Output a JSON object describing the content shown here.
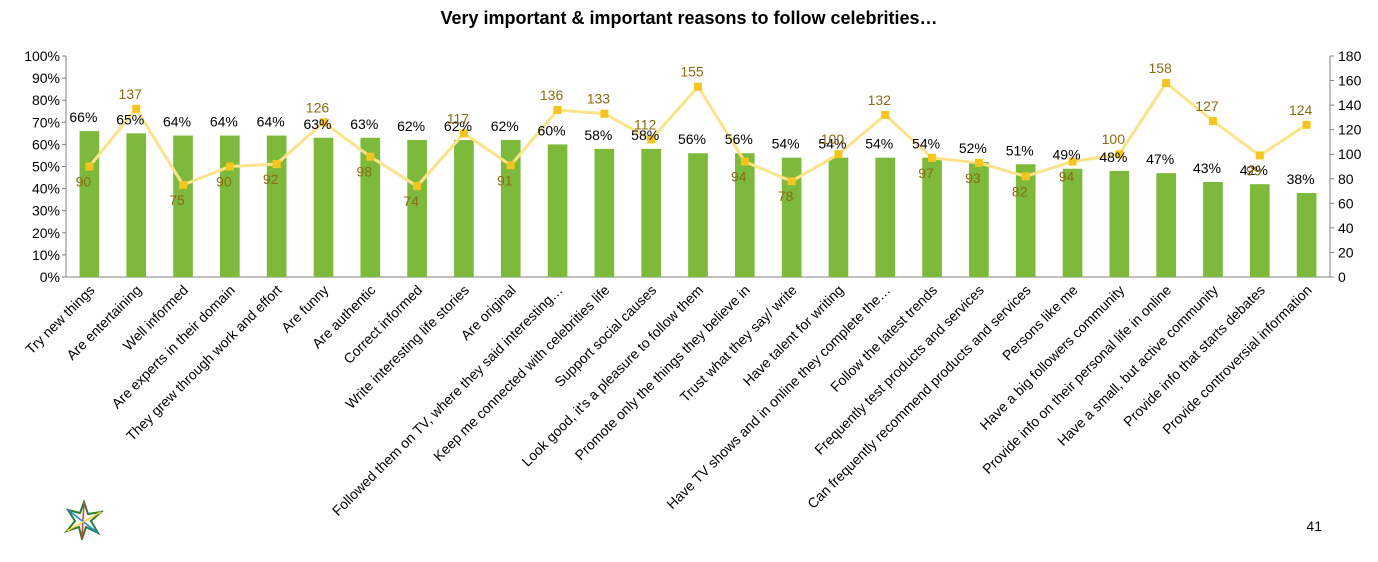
{
  "page": {
    "number": "41"
  },
  "logo": {
    "name": "multicolor-star-logo"
  },
  "colors": {
    "bar": "#7DB93A",
    "line": "#FBE38B",
    "marker": "#F4C51E",
    "line_label": "#8B6A12",
    "axis": "#808080"
  },
  "chart_data": {
    "type": "bar",
    "title": "Very important & important reasons to follow celebrities…",
    "categories": [
      "Try new things",
      "Are entertaining",
      "Well informed",
      "Are experts in their domain",
      "They grew through work and effort",
      "Are funny",
      "Are authentic",
      "Correct informed",
      "Write interesting life stories",
      "Are original",
      "Followed them on TV, where they said interesting…",
      "Keep me connected with celebrities life",
      "Support social causes",
      "Look good, it's a pleasure to follow them",
      "Promote only the things they believe in",
      "Trust what they say/ write",
      "Have talent for writing",
      "Have TV shows and in online they complete the…",
      "Follow the latest trends",
      "Frequently test products and services",
      "Can frequently recommend products and services",
      "Persons like me",
      "Have a big followers community",
      "Provide info on their personal life in online",
      "Have a small, but active community",
      "Provide info that starts debates",
      "Provide controversial information"
    ],
    "series": [
      {
        "type": "bar",
        "axis": "left",
        "values": [
          66,
          65,
          64,
          64,
          64,
          63,
          63,
          62,
          62,
          62,
          60,
          58,
          58,
          56,
          56,
          54,
          54,
          54,
          54,
          52,
          51,
          49,
          48,
          47,
          43,
          42,
          38
        ],
        "labels": [
          "66%",
          "65%",
          "64%",
          "64%",
          "64%",
          "63%",
          "63%",
          "62%",
          "62%",
          "62%",
          "60%",
          "58%",
          "58%",
          "56%",
          "56%",
          "54%",
          "54%",
          "54%",
          "54%",
          "52%",
          "51%",
          "49%",
          "48%",
          "47%",
          "43%",
          "42%",
          "38%"
        ]
      },
      {
        "type": "line",
        "axis": "right",
        "values": [
          90,
          137,
          75,
          90,
          92,
          126,
          98,
          74,
          117,
          91,
          136,
          133,
          112,
          155,
          94,
          78,
          100,
          132,
          97,
          93,
          82,
          94,
          100,
          158,
          127,
          99,
          124
        ],
        "labels": [
          "90",
          "137",
          "75",
          "90",
          "92",
          "126",
          "98",
          "74",
          "117",
          "91",
          "136",
          "133",
          "112",
          "155",
          "94",
          "78",
          "100",
          "132",
          "97",
          "93",
          "82",
          "94",
          "100",
          "158",
          "127",
          "99",
          "124"
        ]
      }
    ],
    "y_left": {
      "ylim": [
        0,
        100
      ],
      "ticks": [
        "0%",
        "10%",
        "20%",
        "30%",
        "40%",
        "50%",
        "60%",
        "70%",
        "80%",
        "90%",
        "100%"
      ]
    },
    "y_right": {
      "ylim": [
        0,
        180
      ],
      "ticks": [
        "0",
        "20",
        "40",
        "60",
        "80",
        "100",
        "120",
        "140",
        "160",
        "180"
      ]
    },
    "grid": false,
    "legend": "none"
  }
}
